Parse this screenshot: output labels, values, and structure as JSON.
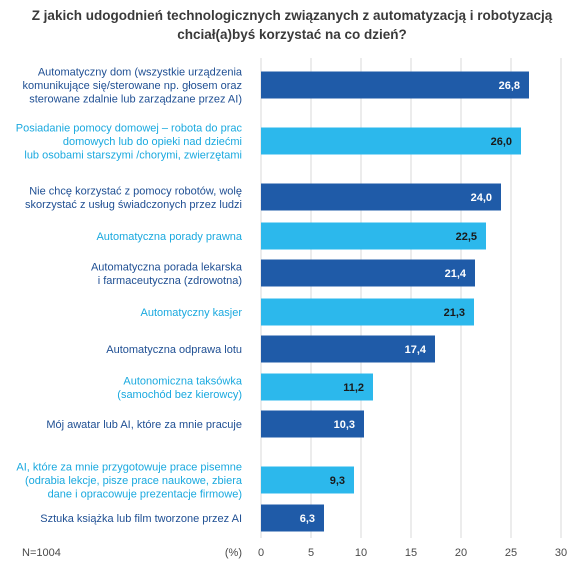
{
  "chart_data": {
    "type": "bar",
    "orientation": "horizontal",
    "title_lines": [
      "Z jakich udogodnień technologicznych związanych z automatyzacją i robotyzacją",
      "chciał(a)byś korzystać na co dzień?"
    ],
    "categories": [
      [
        "Automatyczny dom (wszystkie urządzenia",
        "komunikujące się/sterowane np. głosem oraz",
        "sterowane zdalnie lub zarządzane przez AI)"
      ],
      [
        "Posiadanie pomocy domowej – robota do prac",
        "domowych lub do opieki nad dziećmi",
        "lub osobami starszymi /chorymi, zwierzętami"
      ],
      [
        "Nie chcę korzystać z pomocy robotów, wolę",
        "skorzystać z usług świadczonych przez ludzi"
      ],
      [
        "Automatyczna porady prawna"
      ],
      [
        "Automatyczna porada lekarska",
        "i farmaceutyczna (zdrowotna)"
      ],
      [
        "Automatyczny kasjer"
      ],
      [
        "Automatyczna odprawa lotu"
      ],
      [
        "Autonomiczna taksówka",
        "(samochód bez kierowcy)"
      ],
      [
        "Mój awatar lub AI, które za mnie pracuje"
      ],
      [
        "AI, które za mnie przygotowuje prace pisemne",
        "(odrabia lekcje, pisze prace naukowe, zbiera",
        "dane i opracowuje prezentacje firmowe)"
      ],
      [
        "Sztuka książka lub film tworzone przez AI"
      ]
    ],
    "values": [
      26.8,
      26.0,
      24.0,
      22.5,
      21.4,
      21.3,
      17.4,
      11.2,
      10.3,
      9.3,
      6.3
    ],
    "value_labels": [
      "26,8",
      "26,0",
      "24,0",
      "22,5",
      "21,4",
      "21,3",
      "17,4",
      "11,2",
      "10,3",
      "9,3",
      "6,3"
    ],
    "bar_tone": [
      "dark",
      "light",
      "dark",
      "light",
      "dark",
      "light",
      "dark",
      "light",
      "dark",
      "light",
      "dark"
    ],
    "xlim": [
      0,
      30
    ],
    "xticks": [
      0,
      5,
      10,
      15,
      20,
      25,
      30
    ],
    "xticks_labels": [
      "0",
      "5",
      "10",
      "15",
      "20",
      "25",
      "30"
    ],
    "unit_label": "(%)",
    "sample_note": "N=1004",
    "grid": true,
    "colors": {
      "dark": "#1f5ba8",
      "light": "#2cb8ec",
      "dark_text": "#1f4f93",
      "light_text": "#1aa9df",
      "value_on_dark": "#ffffff",
      "value_on_light": "#1a1a1a",
      "grid": "#d9d9d9",
      "axis_text": "#4a4a4a"
    }
  }
}
